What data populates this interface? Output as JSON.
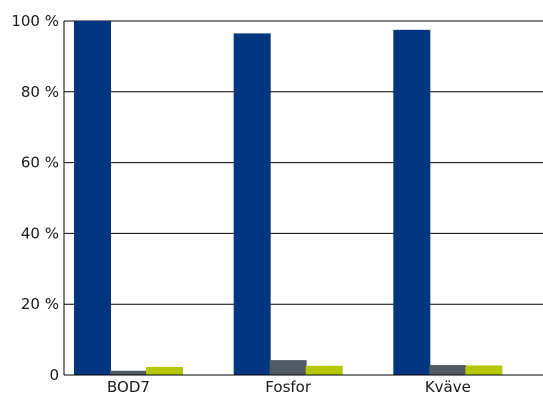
{
  "chart_data": {
    "type": "bar",
    "categories": [
      "BOD7",
      "Fosfor",
      "Kväve"
    ],
    "series": [
      {
        "values": [
          100,
          96.5,
          97.5
        ],
        "color": "#003580"
      },
      {
        "values": [
          1.2,
          4.2,
          2.8
        ],
        "color": "#4f5a63"
      },
      {
        "values": [
          2.3,
          2.6,
          2.7
        ],
        "color": "#b5c700"
      }
    ],
    "yticks": [
      0,
      20,
      40,
      60,
      80,
      100
    ],
    "ytick_labels": [
      "0",
      "20 %",
      "40 %",
      "60 %",
      "80 %",
      "100 %"
    ],
    "ylim": [
      0,
      100
    ],
    "grid": true,
    "legend": false,
    "title": "",
    "xlabel": "",
    "ylabel": ""
  }
}
